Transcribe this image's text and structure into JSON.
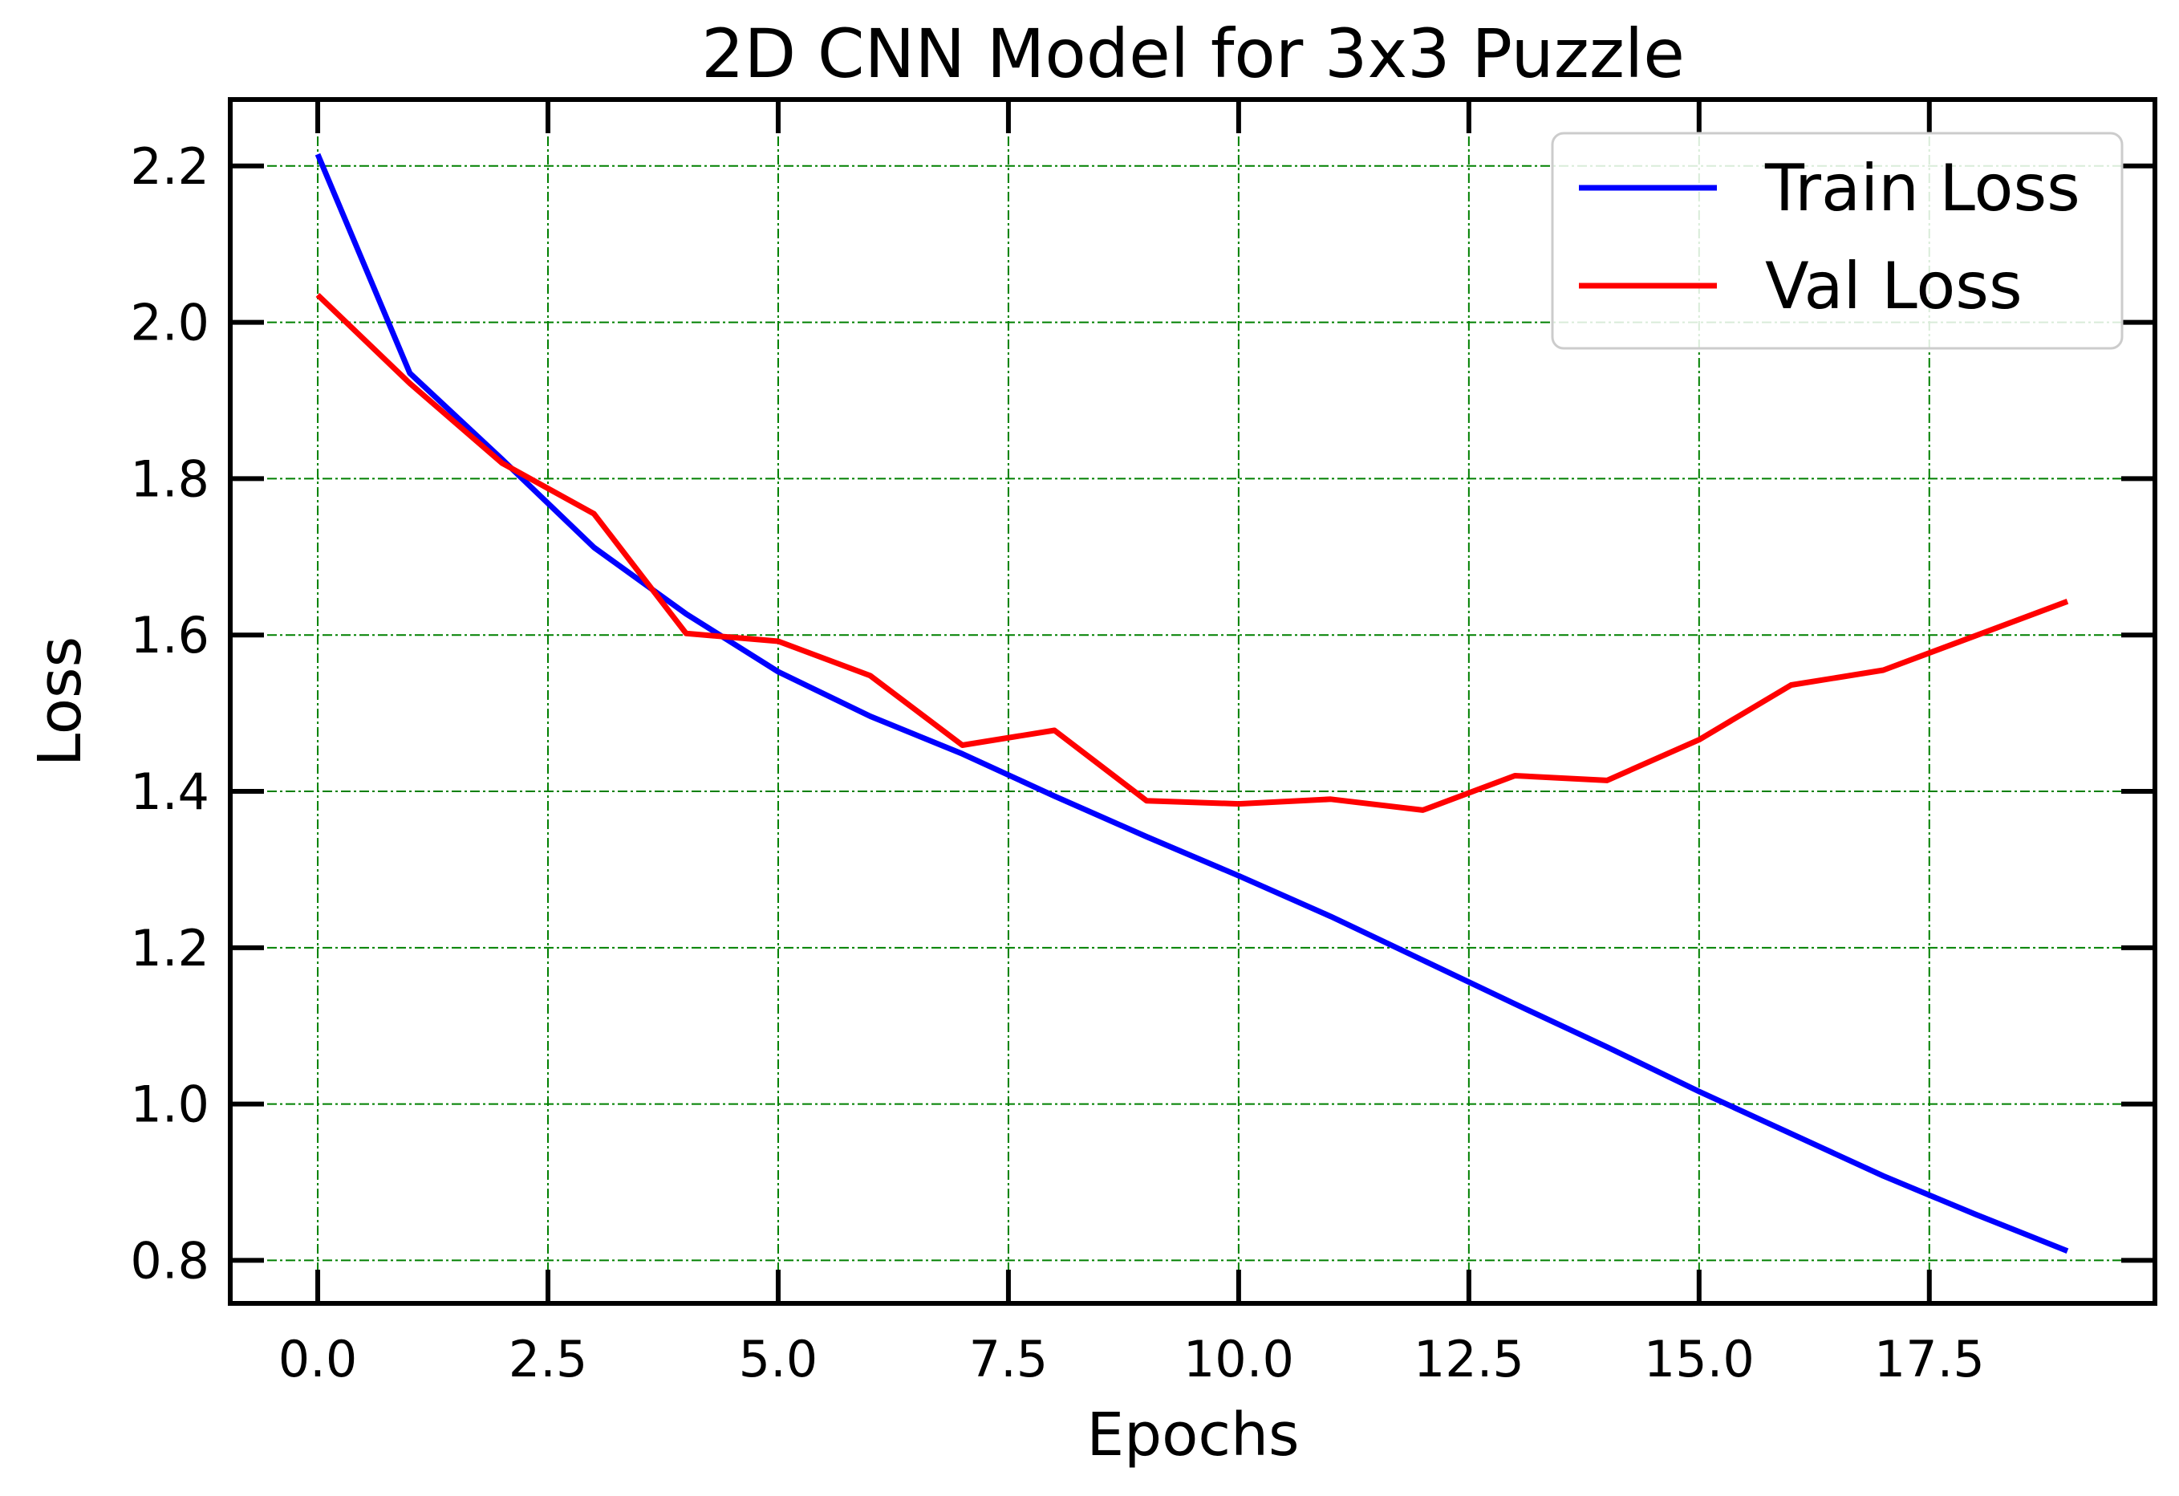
{
  "chart_data": {
    "type": "line",
    "title": "2D CNN Model for 3x3 Puzzle",
    "xlabel": "Epochs",
    "ylabel": "Loss",
    "xlim": [
      -0.95,
      19.95
    ],
    "ylim": [
      0.745,
      2.285
    ],
    "xticks": [
      "0.0",
      "2.5",
      "5.0",
      "7.5",
      "10.0",
      "12.5",
      "15.0",
      "17.5"
    ],
    "yticks": [
      "0.8",
      "1.0",
      "1.2",
      "1.4",
      "1.6",
      "1.8",
      "2.0",
      "2.2"
    ],
    "grid": true,
    "grid_color": "#008000",
    "legend_position": "top-right",
    "x": [
      0,
      1,
      2,
      3,
      4,
      5,
      6,
      7,
      8,
      9,
      10,
      11,
      12,
      13,
      14,
      15,
      16,
      17,
      18,
      19
    ],
    "series": [
      {
        "name": "Train Loss",
        "color": "#0000ff",
        "values": [
          2.215,
          1.935,
          1.825,
          1.712,
          1.627,
          1.553,
          1.496,
          1.448,
          1.394,
          1.342,
          1.292,
          1.24,
          1.184,
          1.128,
          1.073,
          1.016,
          0.962,
          0.908,
          0.859,
          0.812
        ]
      },
      {
        "name": "Val Loss",
        "color": "#ff0000",
        "values": [
          2.035,
          1.922,
          1.82,
          1.755,
          1.602,
          1.592,
          1.548,
          1.459,
          1.478,
          1.388,
          1.384,
          1.39,
          1.376,
          1.42,
          1.414,
          1.466,
          1.536,
          1.555,
          1.599,
          1.643
        ]
      }
    ]
  }
}
